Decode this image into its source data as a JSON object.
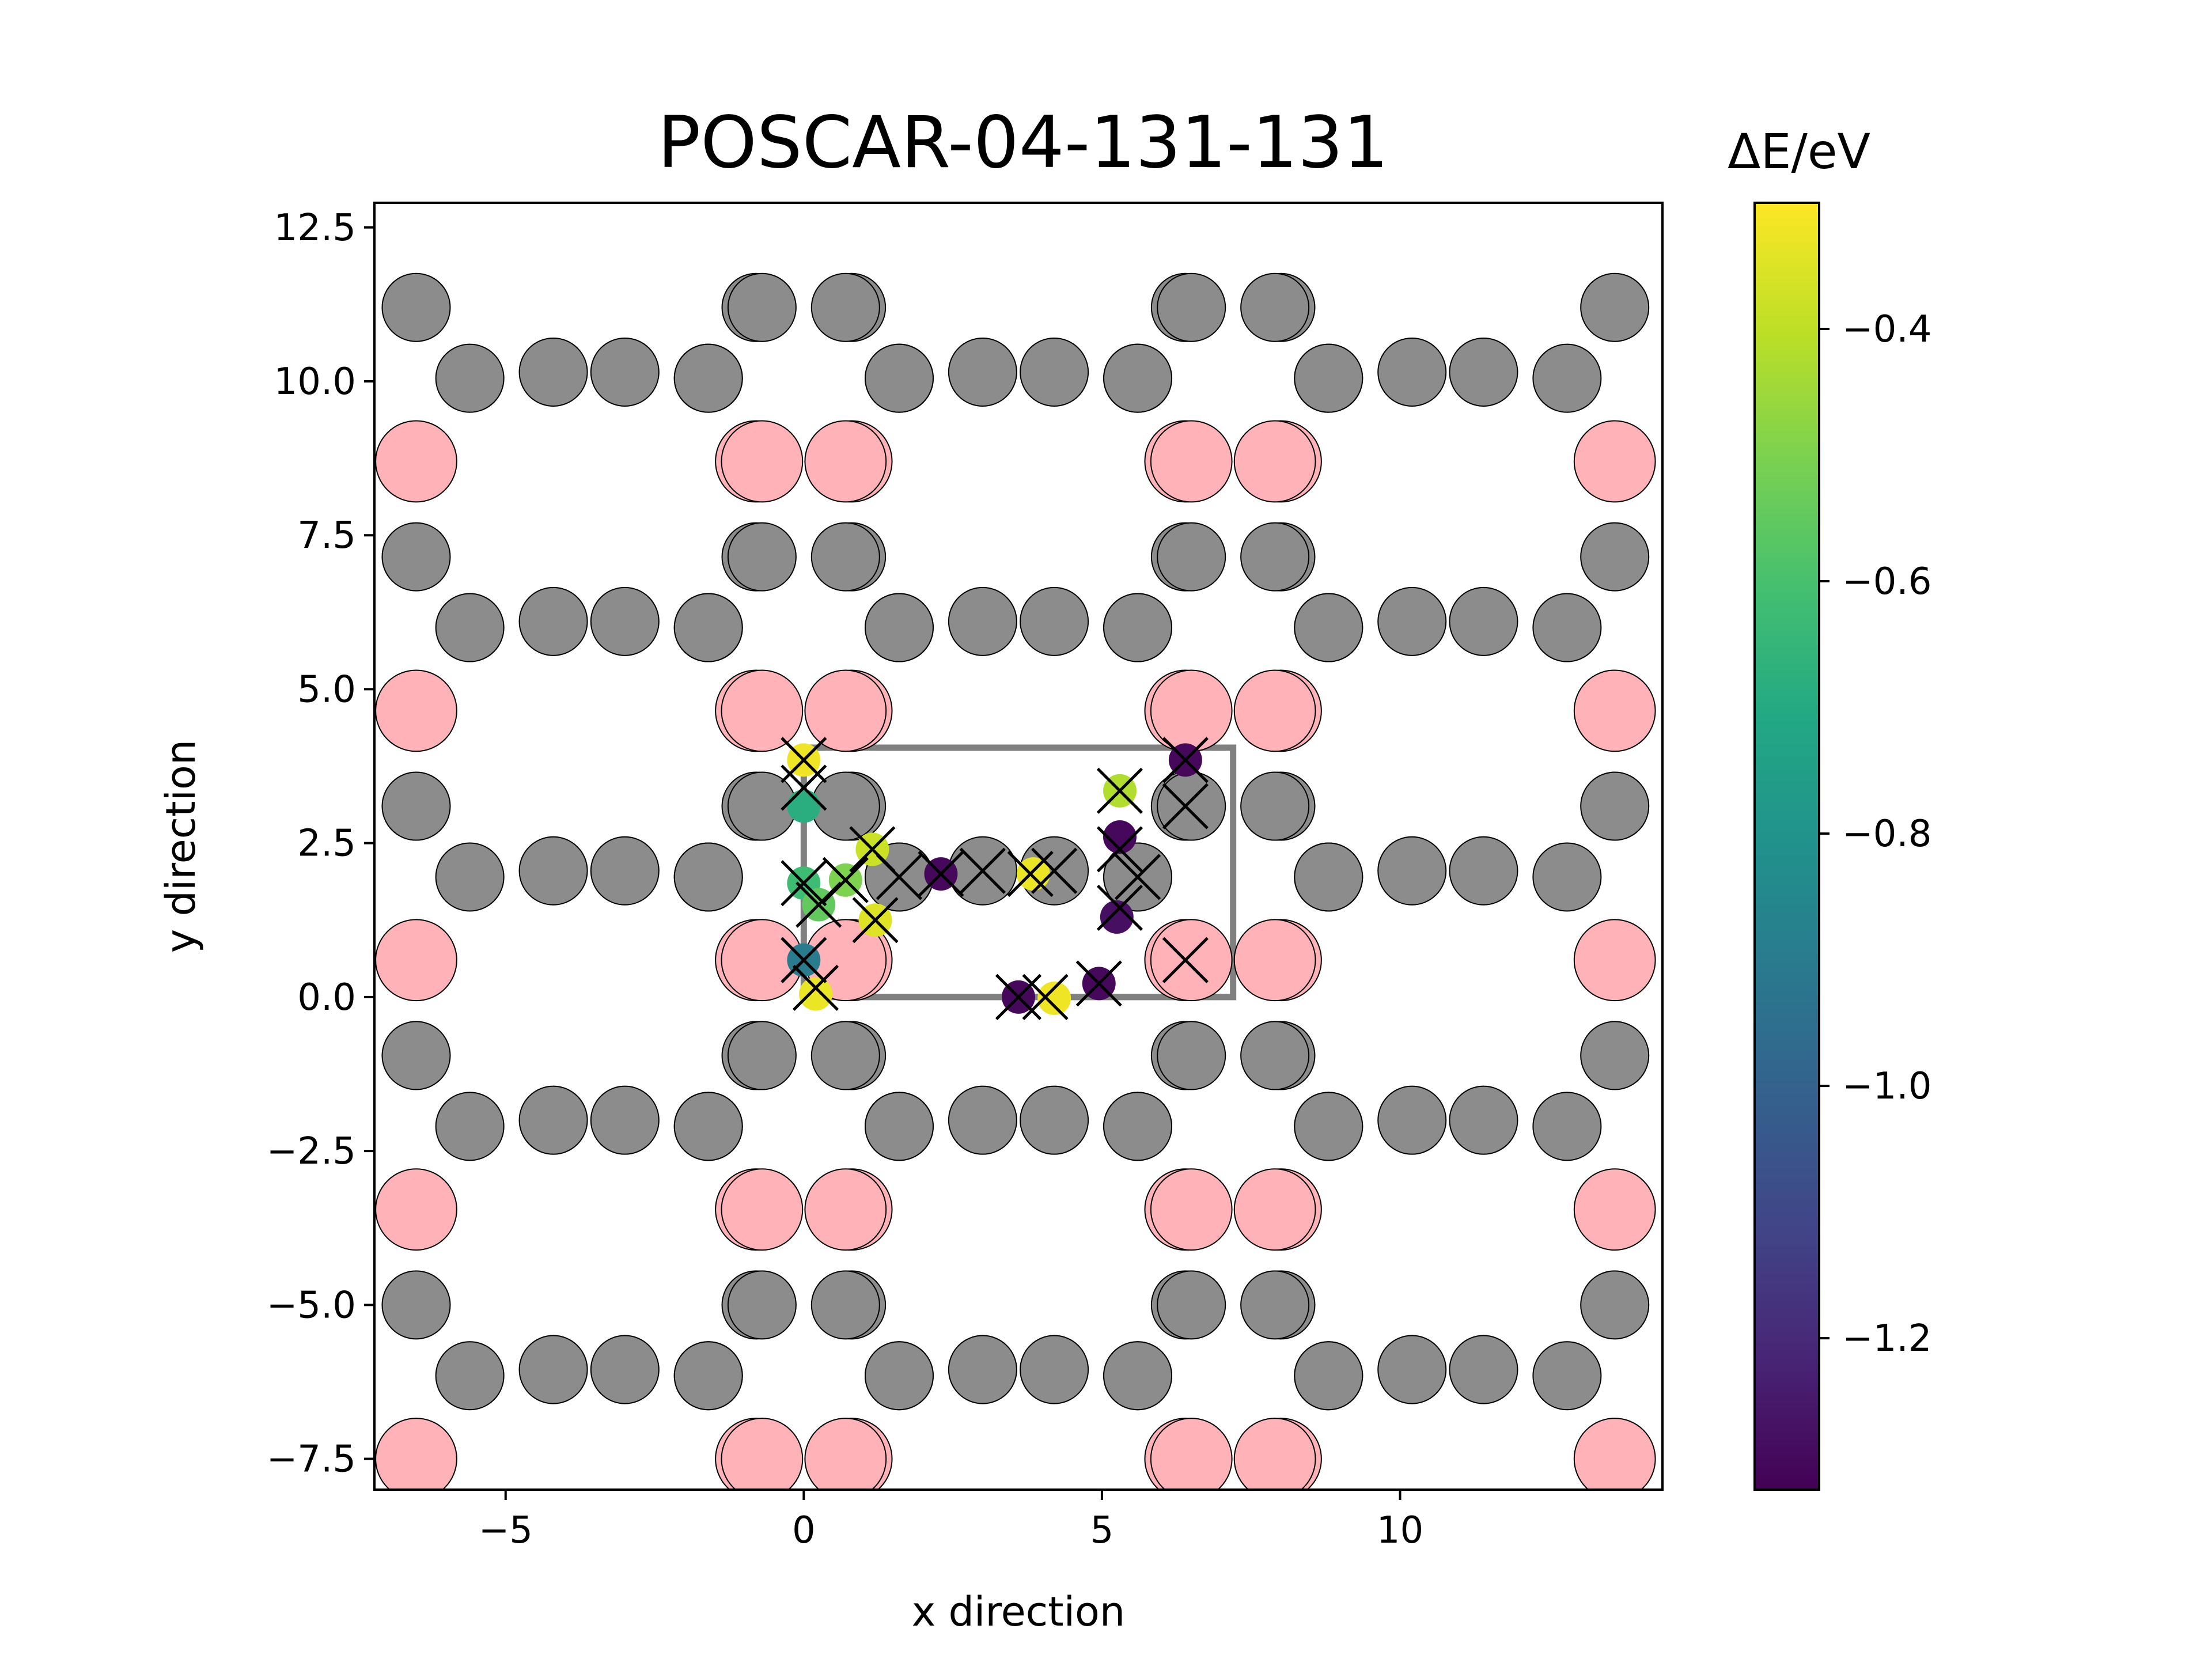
{
  "chart_data": {
    "type": "scatter",
    "title": "POSCAR-04-131-131",
    "xlabel": "x direction",
    "ylabel": "y direction",
    "xlim": [
      -7.2,
      14.4
    ],
    "ylim": [
      -8.0,
      12.9
    ],
    "xticks": [
      -5,
      0,
      5,
      10
    ],
    "yticks": [
      -7.5,
      -5.0,
      -2.5,
      0.0,
      2.5,
      5.0,
      7.5,
      10.0,
      12.5
    ],
    "xtick_labels": [
      "−5",
      "0",
      "5",
      "10"
    ],
    "ytick_labels": [
      "−7.5",
      "−5.0",
      "−2.5",
      "0.0",
      "2.5",
      "5.0",
      "7.5",
      "10.0",
      "12.5"
    ],
    "colors": {
      "gray_atom": "#8c8c8c",
      "pink_atom": "#ffb3b8",
      "cell": "#808080"
    },
    "colorbar": {
      "title": "ΔE/eV",
      "vmin": -1.32,
      "vmax": -0.3,
      "ticks": [
        -0.4,
        -0.6,
        -0.8,
        -1.0,
        -1.2
      ],
      "tick_labels": [
        "−0.4",
        "−0.6",
        "−0.8",
        "−1.0",
        "−1.2"
      ],
      "colormap": "viridis"
    },
    "unit_cell": {
      "x": [
        0,
        7.2
      ],
      "y": [
        0,
        4.05
      ]
    },
    "lattice_offsets": {
      "dx": [
        -7.2,
        0,
        7.2
      ],
      "dy": [
        -8.1,
        -4.05,
        0,
        4.05,
        8.1
      ]
    },
    "gray_atoms_cell": [
      [
        -0.7,
        3.1
      ],
      [
        0.7,
        3.1
      ],
      [
        6.4,
        3.1
      ],
      [
        8.0,
        3.1
      ],
      [
        -1.6,
        1.95
      ],
      [
        1.6,
        1.95
      ],
      [
        3.0,
        2.05
      ],
      [
        4.2,
        2.05
      ],
      [
        5.6,
        1.95
      ],
      [
        8.8,
        1.95
      ]
    ],
    "pink_atoms_cell": [
      [
        -0.7,
        0.6
      ],
      [
        0.7,
        0.6
      ],
      [
        6.4,
        0.6
      ],
      [
        8.0,
        0.6
      ]
    ],
    "adsorption_sites": [
      {
        "x": 0.0,
        "y": 3.85,
        "dE": -0.32
      },
      {
        "x": 0.0,
        "y": 3.1,
        "dE": -0.68
      },
      {
        "x": 0.0,
        "y": 1.85,
        "dE": -0.62
      },
      {
        "x": 0.25,
        "y": 1.5,
        "dE": -0.55
      },
      {
        "x": 0.7,
        "y": 1.9,
        "dE": -0.5
      },
      {
        "x": 1.15,
        "y": 2.4,
        "dE": -0.38
      },
      {
        "x": 1.2,
        "y": 1.25,
        "dE": -0.35
      },
      {
        "x": 0.0,
        "y": 0.6,
        "dE": -0.9
      },
      {
        "x": 0.2,
        "y": 0.05,
        "dE": -0.33
      },
      {
        "x": 2.3,
        "y": 2.0,
        "dE": -1.3
      },
      {
        "x": 3.6,
        "y": 0.0,
        "dE": -1.3
      },
      {
        "x": 4.2,
        "y": -0.02,
        "dE": -0.32
      },
      {
        "x": 3.85,
        "y": 2.0,
        "dE": -0.33
      },
      {
        "x": 4.95,
        "y": 0.22,
        "dE": -1.3
      },
      {
        "x": 5.3,
        "y": 3.35,
        "dE": -0.42
      },
      {
        "x": 5.3,
        "y": 2.6,
        "dE": -1.3
      },
      {
        "x": 5.25,
        "y": 1.3,
        "dE": -1.28
      },
      {
        "x": 6.4,
        "y": 3.85,
        "dE": -1.3
      }
    ],
    "x_markers": [
      [
        0.0,
        3.85
      ],
      [
        0.0,
        3.4
      ],
      [
        0.0,
        1.85
      ],
      [
        0.25,
        1.5
      ],
      [
        0.7,
        1.9
      ],
      [
        1.15,
        2.4
      ],
      [
        1.2,
        1.25
      ],
      [
        0.0,
        0.6
      ],
      [
        0.2,
        0.15
      ],
      [
        1.6,
        1.95
      ],
      [
        2.3,
        2.0
      ],
      [
        3.0,
        2.05
      ],
      [
        3.8,
        2.0
      ],
      [
        4.2,
        2.05
      ],
      [
        3.6,
        0.0
      ],
      [
        4.05,
        0.0
      ],
      [
        4.95,
        0.22
      ],
      [
        5.3,
        3.35
      ],
      [
        5.3,
        2.4
      ],
      [
        5.6,
        1.95
      ],
      [
        5.3,
        1.45
      ],
      [
        6.4,
        3.85
      ],
      [
        6.4,
        3.1
      ],
      [
        6.4,
        0.6
      ]
    ]
  }
}
